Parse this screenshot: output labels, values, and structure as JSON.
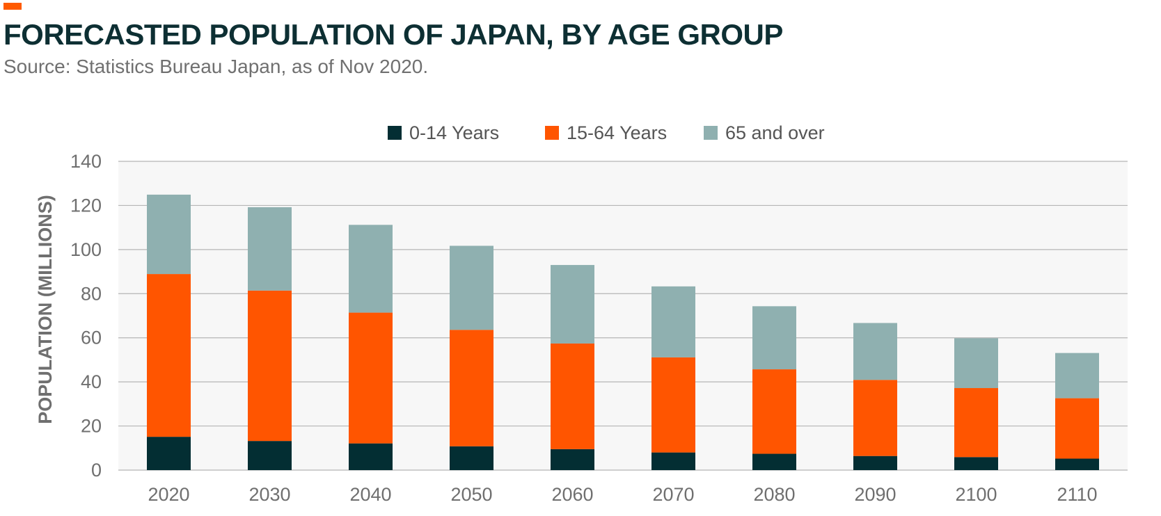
{
  "header": {
    "title": "FORECASTED POPULATION OF JAPAN, BY AGE GROUP",
    "subtitle": "Source: Statistics Bureau Japan, as of Nov 2020."
  },
  "colors": {
    "accent": "#ff5a00",
    "title": "#0d2f33",
    "plot_background": "#f7f7f7",
    "gridline": "#b5b5b5"
  },
  "chart_data": {
    "type": "bar",
    "stacked": true,
    "title": "FORECASTED POPULATION OF JAPAN, BY AGE GROUP",
    "xlabel": "",
    "ylabel": "POPULATION (MILLIONS)",
    "ylim": [
      0,
      140
    ],
    "yticks": [
      0,
      20,
      40,
      60,
      80,
      100,
      120,
      140
    ],
    "grid": true,
    "legend_position": "top-center",
    "categories": [
      "2020",
      "2030",
      "2040",
      "2050",
      "2060",
      "2070",
      "2080",
      "2090",
      "2100",
      "2110"
    ],
    "series": [
      {
        "name": "0-14 Years",
        "color": "#032e33",
        "values": [
          15.1,
          13.2,
          12.1,
          10.8,
          9.5,
          8.0,
          7.4,
          6.4,
          5.9,
          5.2
        ]
      },
      {
        "name": "15-64 Years",
        "color": "#ff5500",
        "values": [
          73.8,
          68.2,
          59.3,
          52.8,
          47.9,
          43.1,
          38.3,
          34.5,
          31.3,
          27.4
        ]
      },
      {
        "name": "65 and over",
        "color": "#8fb0b0",
        "values": [
          36.0,
          37.8,
          39.8,
          38.1,
          35.6,
          32.2,
          28.6,
          25.8,
          22.6,
          20.5
        ]
      }
    ]
  }
}
